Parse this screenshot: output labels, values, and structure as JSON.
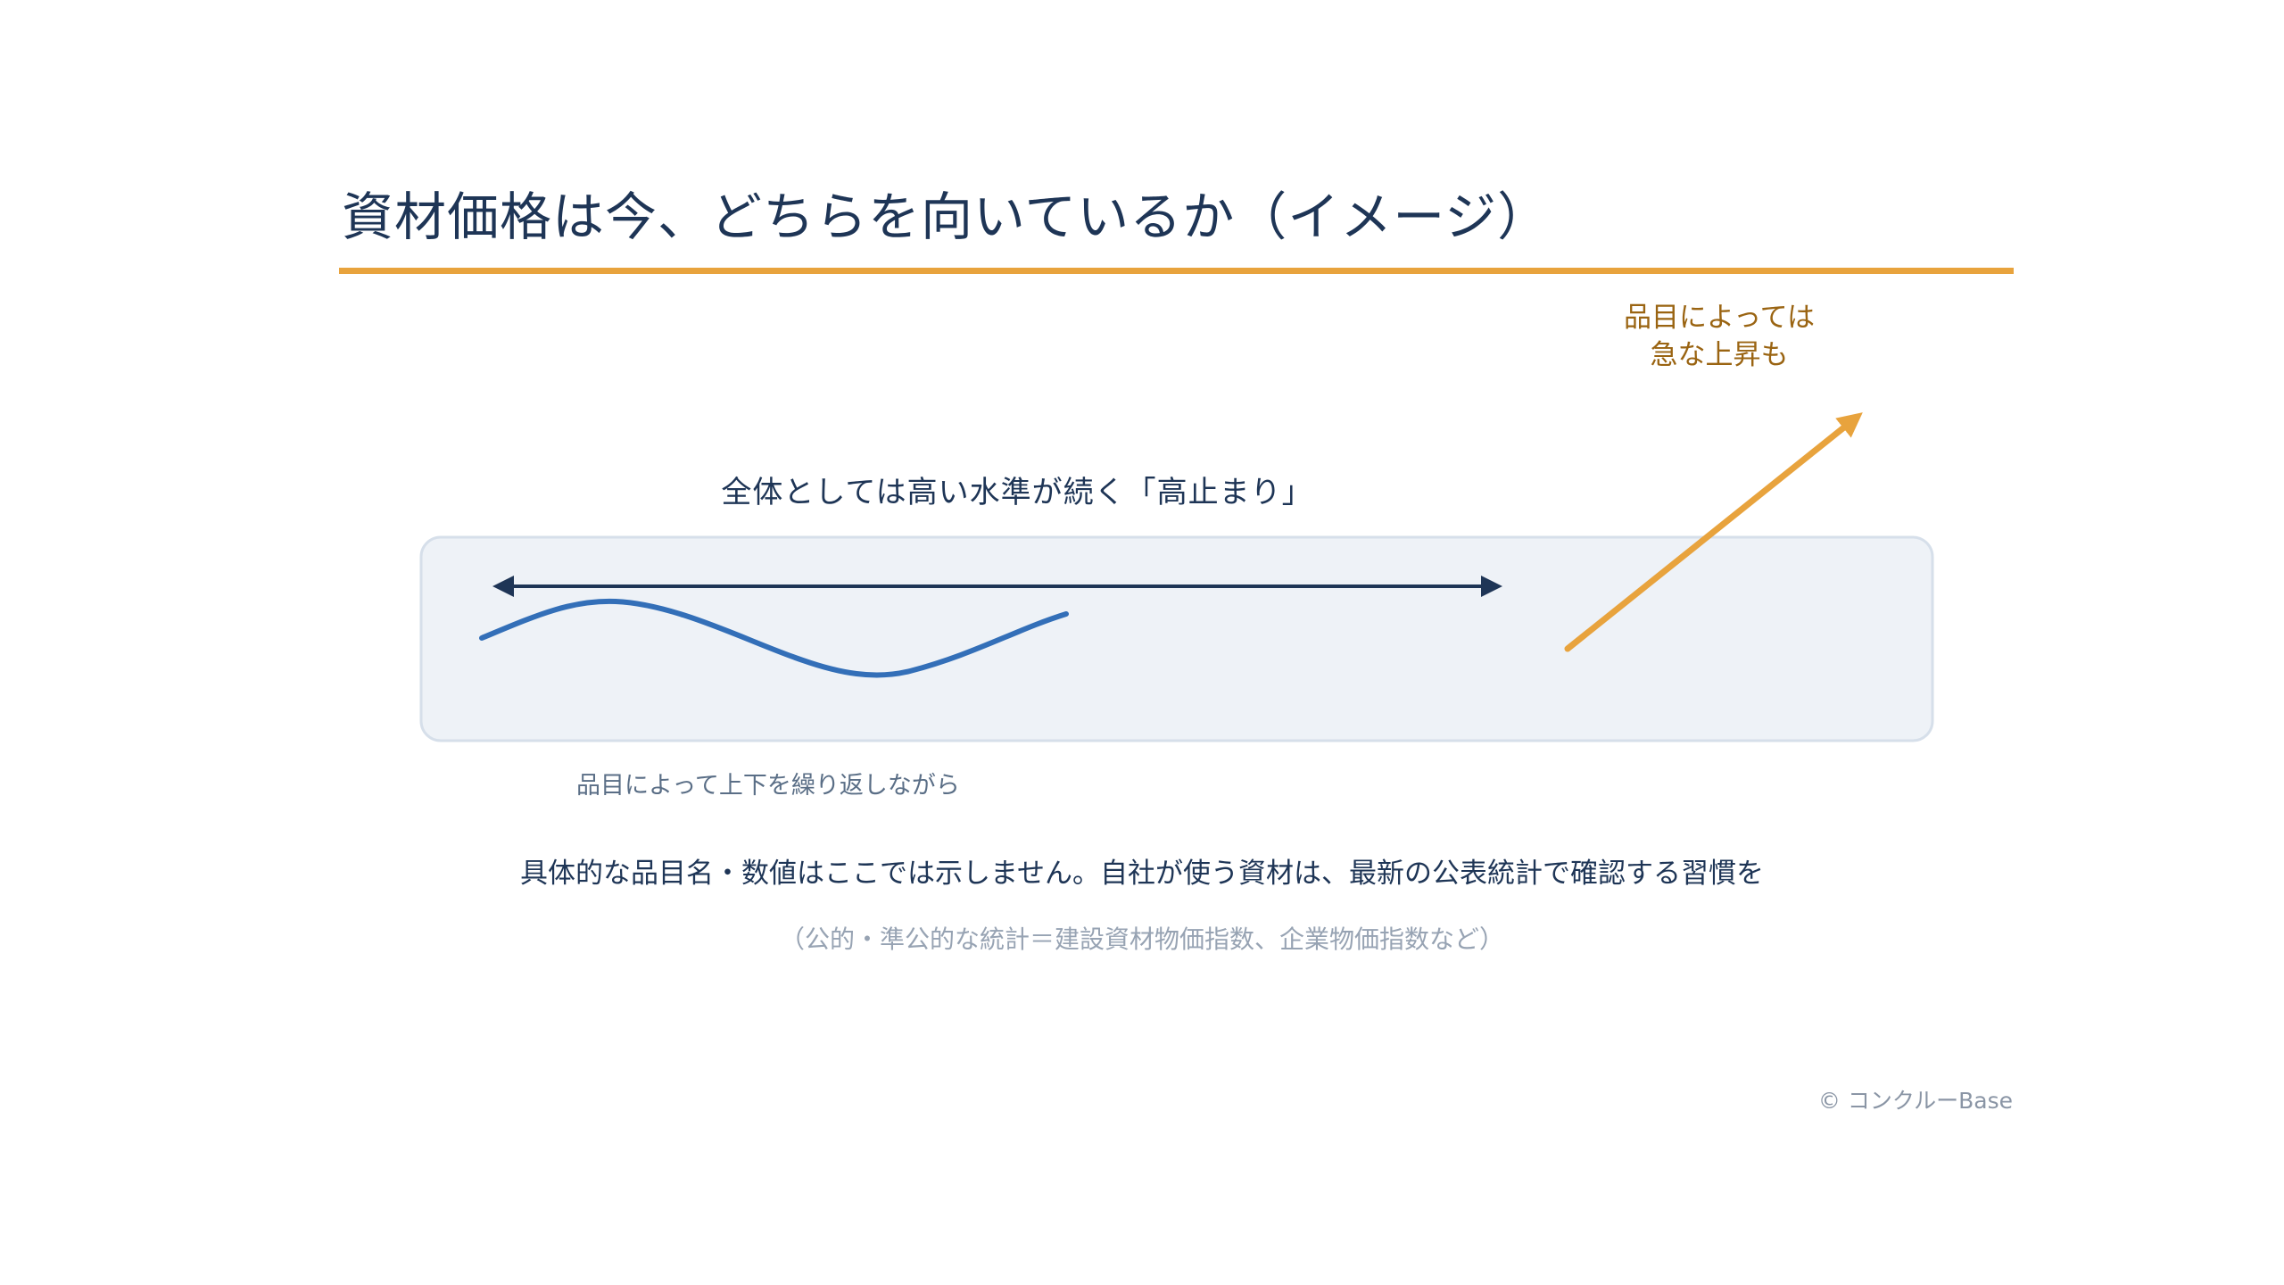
{
  "slide": {
    "title": "資材価格は今、どちらを向いているか（イメージ）",
    "plateau_label": "全体としては高い水準が続く「高止まり」",
    "spike_label_line1": "品目によっては",
    "spike_label_line2": "急な上昇も",
    "oscillation_label": "品目によって上下を繰り返しながら",
    "note": "具体的な品目名・数値はここでは示しません。自社が使う資材は、最新の公表統計で確認する習慣を",
    "subnote": "（公的・準公的な統計＝建設資材物価指数、企業物価指数など）",
    "copyright": "© コンクルーBase"
  },
  "colors": {
    "title": "#1e3556",
    "accent_orange": "#e8a33d",
    "wave_blue": "#336fb8",
    "arrow_navy": "#1e3556",
    "band_fill": "#eef2f7",
    "band_border": "#d6dfea",
    "spike_text": "#9a6412"
  },
  "icons": {
    "plateau_arrow": "double-headed-arrow",
    "spike_arrow": "diagonal-up-arrow"
  }
}
